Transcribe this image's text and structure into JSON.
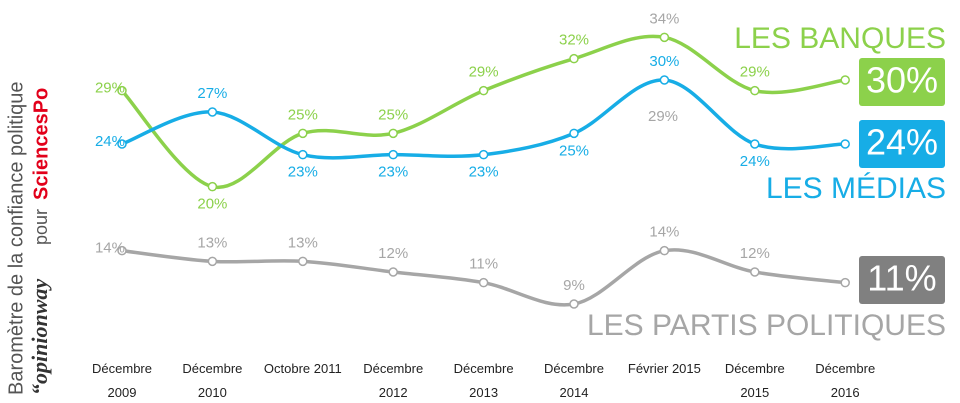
{
  "chart_data": {
    "type": "line",
    "side_title": "Baromètre de la confiance politique",
    "brand": "“opinionway",
    "brand_link": "pour",
    "sponsor": "SciencesPo",
    "categories": [
      "Décembre 2009",
      "Décembre 2010",
      "Octobre 2011",
      "Décembre 2012",
      "Décembre 2013",
      "Décembre 2014",
      "Février 2015",
      "Décembre 2015",
      "Décembre 2016"
    ],
    "ylim": [
      0,
      37.5
    ],
    "series": [
      {
        "name": "LES BANQUES",
        "color": "#8cd14b",
        "values": [
          29,
          20,
          25,
          25,
          29,
          32,
          34,
          29,
          30
        ],
        "value_labels": [
          "29%",
          "20%",
          "25%",
          "25%",
          "29%",
          "32%",
          "34%",
          "29%",
          "30%"
        ]
      },
      {
        "name": "LES MÉDIAS",
        "color": "#17ade6",
        "values": [
          24,
          27,
          23,
          23,
          23,
          25,
          30,
          24,
          24
        ],
        "value_labels": [
          "24%",
          "27%",
          "23%",
          "23%",
          "23%",
          "25%",
          "30%",
          "24%",
          "24%"
        ]
      },
      {
        "name": "LES PARTIS POLITIQUES",
        "color": "#a6a6a6",
        "values": [
          14,
          13,
          13,
          12,
          11,
          9,
          14,
          12,
          11
        ],
        "value_labels": [
          "14%",
          "13%",
          "13%",
          "12%",
          "11%",
          "9%",
          "14%",
          "12%",
          "11%"
        ]
      }
    ],
    "annotation": "29%"
  }
}
